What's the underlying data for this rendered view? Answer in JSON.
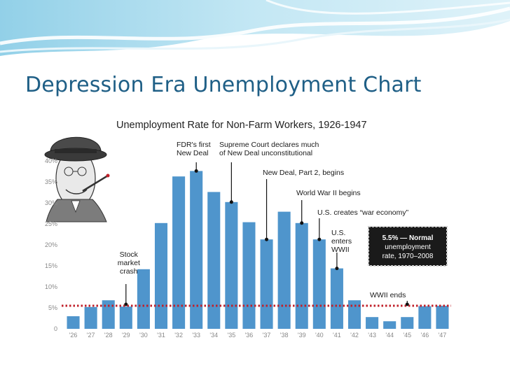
{
  "slide": {
    "title": "Depression Era Unemployment Chart",
    "colors": {
      "title": "#1f5f86",
      "header_wave": "#a9dcee",
      "bar": "#4f95cc",
      "normal_line": "#c0202a"
    }
  },
  "chart_data": {
    "type": "bar",
    "title": "Unemployment Rate for Non-Farm Workers, 1926-1947",
    "xlabel": "",
    "ylabel": "",
    "categories": [
      "'26",
      "'27",
      "'28",
      "'29",
      "'30",
      "'31",
      "'32",
      "'33",
      "'34",
      "'35",
      "'36",
      "'37",
      "'38",
      "'39",
      "'40",
      "'41",
      "'42",
      "'43",
      "'44",
      "'45",
      "'46",
      "'47"
    ],
    "values": [
      3,
      5.2,
      6.8,
      5.3,
      14.2,
      25.2,
      36.3,
      37.6,
      32.6,
      30.2,
      25.4,
      21.3,
      27.9,
      25.2,
      21.3,
      14.4,
      6.8,
      2.8,
      1.8,
      2.8,
      5.4,
      5.5
    ],
    "ylim": [
      0,
      40
    ],
    "yticks": [
      0,
      5,
      10,
      15,
      20,
      25,
      30,
      35,
      40
    ],
    "ytick_labels": [
      "0",
      "5%",
      "10%",
      "15%",
      "20%",
      "25%",
      "30%",
      "35%",
      "40%"
    ],
    "reference_line": {
      "value": 5.5,
      "style": "dotted"
    },
    "grid": false,
    "legend": "none",
    "annotations": [
      {
        "id": "stock-market-crash",
        "lines": [
          "Stock",
          "market",
          "crash"
        ],
        "category": "'29"
      },
      {
        "id": "fdr-first-new-deal",
        "lines": [
          "FDR's first",
          "New Deal"
        ],
        "category": "'33"
      },
      {
        "id": "supreme-court",
        "lines": [
          "Supreme Court declares much",
          "of New Deal unconstitutional"
        ],
        "category": "'35"
      },
      {
        "id": "new-deal-part-2",
        "lines": [
          "New Deal, Part 2, begins"
        ],
        "category": "'37"
      },
      {
        "id": "wwii-begins",
        "lines": [
          "World War II begins"
        ],
        "category": "'39"
      },
      {
        "id": "war-economy",
        "lines": [
          "U.S. creates “war economy”"
        ],
        "category": "'40"
      },
      {
        "id": "us-enters-wwii",
        "lines": [
          "U.S.",
          "enters",
          "WWII"
        ],
        "category": "'41"
      },
      {
        "id": "wwii-ends",
        "lines": [
          "WWII ends"
        ],
        "category": "'45"
      }
    ],
    "callout_box": {
      "lines": [
        "5.5% — Normal",
        "unemployment",
        "rate, 1970–2008"
      ]
    }
  }
}
